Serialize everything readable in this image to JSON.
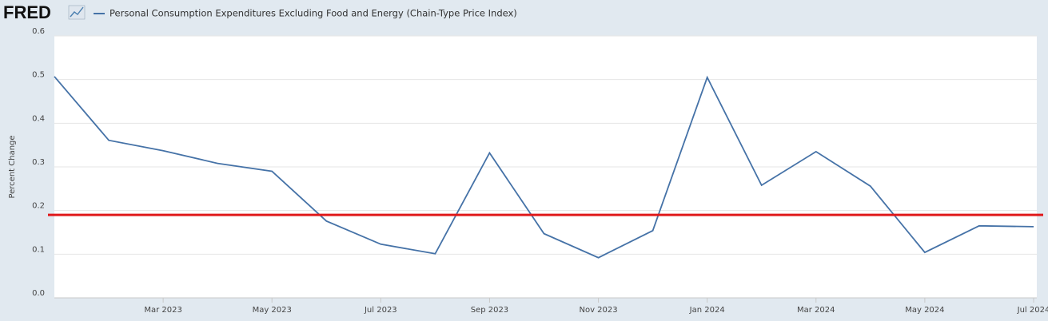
{
  "logo": "FRED",
  "chart_data": {
    "type": "line",
    "y_label": "Percent Change",
    "x": [
      "2023-01",
      "2023-02",
      "2023-03",
      "2023-04",
      "2023-05",
      "2023-06",
      "2023-07",
      "2023-08",
      "2023-09",
      "2023-10",
      "2023-11",
      "2023-12",
      "2024-01",
      "2024-02",
      "2024-03",
      "2024-04",
      "2024-05",
      "2024-06",
      "2024-07"
    ],
    "series": [
      {
        "name": "Personal Consumption Expenditures Excluding Food and Energy (Chain-Type Price Index)",
        "color": "#4572a7",
        "values": [
          0.507,
          0.361,
          0.337,
          0.308,
          0.29,
          0.176,
          0.123,
          0.101,
          0.332,
          0.147,
          0.092,
          0.154,
          0.505,
          0.258,
          0.335,
          0.256,
          0.104,
          0.165,
          0.163
        ]
      }
    ],
    "annotation_line": {
      "value": 0.19,
      "color": "#e0191b"
    },
    "xlim": [
      "2023-01",
      "2024-07"
    ],
    "xticks": [
      {
        "value": "2023-03",
        "label": "Mar 2023"
      },
      {
        "value": "2023-05",
        "label": "May 2023"
      },
      {
        "value": "2023-07",
        "label": "Jul 2023"
      },
      {
        "value": "2023-09",
        "label": "Sep 2023"
      },
      {
        "value": "2023-11",
        "label": "Nov 2023"
      },
      {
        "value": "2024-01",
        "label": "Jan 2024"
      },
      {
        "value": "2024-03",
        "label": "Mar 2024"
      },
      {
        "value": "2024-05",
        "label": "May 2024"
      },
      {
        "value": "2024-07",
        "label": "Jul 2024"
      }
    ],
    "ylim": [
      0,
      0.6
    ],
    "yticks": [
      {
        "value": 0,
        "label": "0.0"
      },
      0.1,
      0.2,
      0.3,
      0.4,
      0.5,
      0.6
    ],
    "grid": true
  }
}
